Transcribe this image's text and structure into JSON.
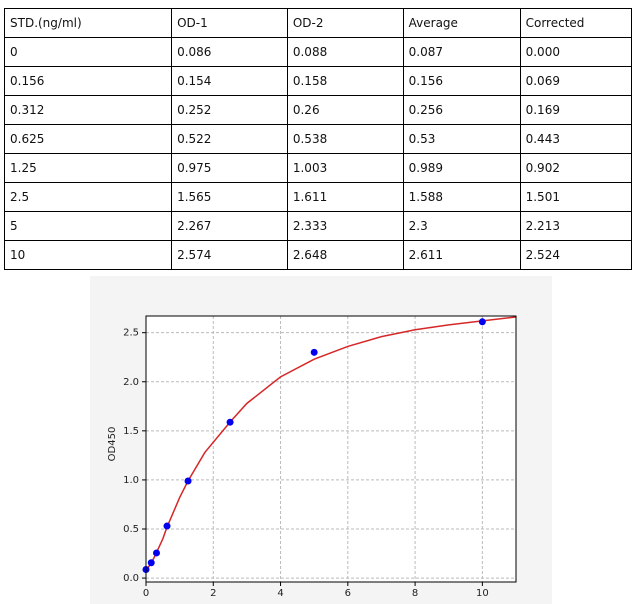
{
  "table": {
    "header": [
      "STD.(ng/ml)",
      "OD-1",
      "OD-2",
      "Average",
      "Corrected"
    ],
    "rows": [
      [
        "0",
        "0.086",
        "0.088",
        "0.087",
        "0.000"
      ],
      [
        "0.156",
        "0.154",
        "0.158",
        "0.156",
        "0.069"
      ],
      [
        "0.312",
        "0.252",
        "0.26",
        "0.256",
        "0.169"
      ],
      [
        "0.625",
        "0.522",
        "0.538",
        "0.53",
        "0.443"
      ],
      [
        "1.25",
        "0.975",
        "1.003",
        "0.989",
        "0.902"
      ],
      [
        "2.5",
        "1.565",
        "1.611",
        "1.588",
        "1.501"
      ],
      [
        "5",
        "2.267",
        "2.333",
        "2.3",
        "2.213"
      ],
      [
        "10",
        "2.574",
        "2.648",
        "2.611",
        "2.524"
      ]
    ]
  },
  "chart_data": {
    "type": "scatter",
    "y_label": "OD450",
    "x": [
      0,
      0.156,
      0.312,
      0.625,
      1.25,
      2.5,
      5,
      10
    ],
    "series": [
      {
        "color": "#0000ee",
        "values": [
          0.087,
          0.156,
          0.256,
          0.53,
          0.989,
          1.588,
          2.3,
          2.611
        ]
      }
    ],
    "fit": {
      "color": "#d62728",
      "x": [
        0,
        0.156,
        0.312,
        0.5,
        0.625,
        1,
        1.25,
        1.75,
        2.5,
        3,
        4,
        5,
        6,
        7,
        8,
        9,
        10,
        11
      ],
      "values": [
        0.08,
        0.15,
        0.26,
        0.4,
        0.52,
        0.82,
        0.99,
        1.28,
        1.59,
        1.78,
        2.05,
        2.23,
        2.36,
        2.46,
        2.53,
        2.58,
        2.62,
        2.66
      ]
    },
    "xlim": [
      0,
      11
    ],
    "ylim": [
      -0.04,
      2.67
    ],
    "xticks": [
      0,
      2,
      4,
      6,
      8,
      10
    ],
    "yticks": [
      {
        "value": 0,
        "label": "0.0"
      },
      0.5,
      {
        "value": 1,
        "label": "1.0"
      },
      1.5,
      {
        "value": 2,
        "label": "2.0"
      },
      2.5
    ],
    "grid": true
  }
}
